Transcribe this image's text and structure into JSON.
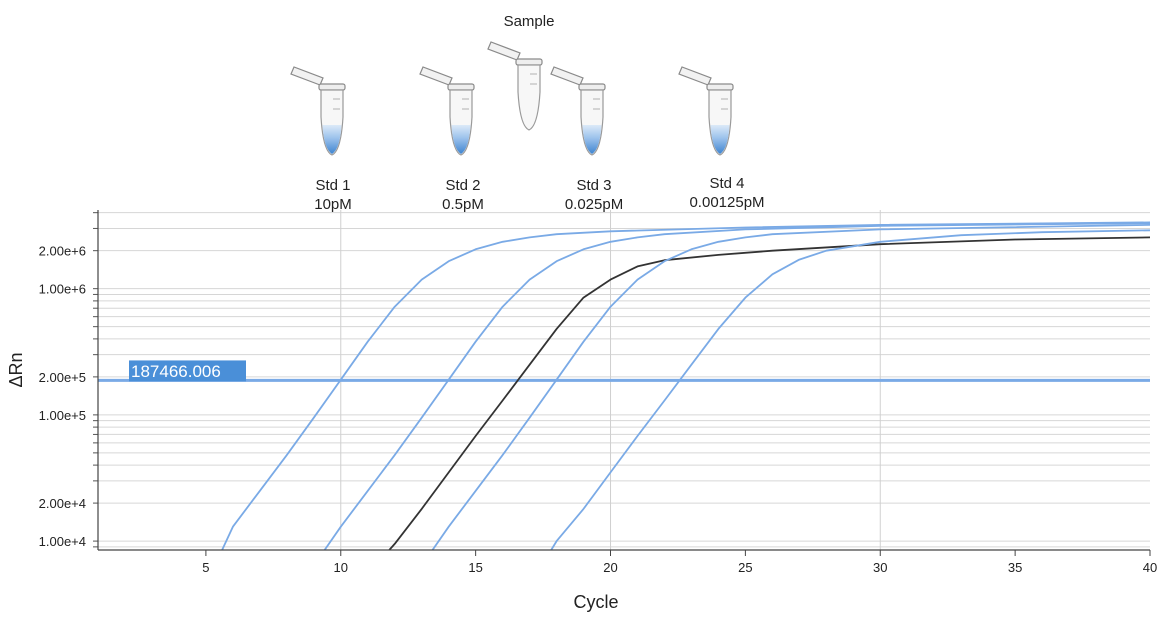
{
  "chart_data": {
    "type": "line",
    "xlabel": "Cycle",
    "ylabel": "ΔRn",
    "y_scale": "log",
    "xlim": [
      1,
      40
    ],
    "ylim": [
      8500,
      4200000
    ],
    "x_ticks": [
      5,
      10,
      15,
      20,
      25,
      30,
      35,
      40
    ],
    "x_tick_labels": [
      "5",
      "10",
      "15",
      "20",
      "25",
      "30",
      "35",
      "40"
    ],
    "y_ticks": [
      10000,
      20000,
      100000,
      200000,
      1000000,
      2000000
    ],
    "y_tick_labels": [
      "1.00e+4",
      "2.00e+4",
      "1.00e+5",
      "2.00e+5",
      "1.00e+6",
      "2.00e+6"
    ],
    "grid": true,
    "threshold": {
      "value": 187466.006,
      "label": "187466.006",
      "color": "#7aaae6"
    },
    "series": [
      {
        "color": "#7aaae6",
        "points": [
          [
            5.6,
            8500
          ],
          [
            6,
            13000
          ],
          [
            7,
            25000
          ],
          [
            8,
            48000
          ],
          [
            9,
            95000
          ],
          [
            10,
            190000
          ],
          [
            11,
            380000
          ],
          [
            12,
            720000
          ],
          [
            13,
            1180000
          ],
          [
            14,
            1650000
          ],
          [
            15,
            2050000
          ],
          [
            16,
            2350000
          ],
          [
            17,
            2550000
          ],
          [
            18,
            2700000
          ],
          [
            20,
            2850000
          ],
          [
            25,
            3050000
          ],
          [
            30,
            3200000
          ],
          [
            40,
            3350000
          ]
        ]
      },
      {
        "color": "#7aaae6",
        "points": [
          [
            9.4,
            8500
          ],
          [
            10,
            13000
          ],
          [
            11,
            25000
          ],
          [
            12,
            48000
          ],
          [
            13,
            95000
          ],
          [
            14,
            190000
          ],
          [
            15,
            380000
          ],
          [
            16,
            720000
          ],
          [
            17,
            1180000
          ],
          [
            18,
            1650000
          ],
          [
            19,
            2050000
          ],
          [
            20,
            2350000
          ],
          [
            21,
            2550000
          ],
          [
            22,
            2700000
          ],
          [
            25,
            2950000
          ],
          [
            30,
            3150000
          ],
          [
            40,
            3300000
          ]
        ]
      },
      {
        "color": "#333333",
        "points": [
          [
            11.8,
            8500
          ],
          [
            12,
            9500
          ],
          [
            13,
            18000
          ],
          [
            14,
            35000
          ],
          [
            15,
            68000
          ],
          [
            16,
            130000
          ],
          [
            17,
            250000
          ],
          [
            18,
            480000
          ],
          [
            19,
            850000
          ],
          [
            20,
            1180000
          ],
          [
            21,
            1500000
          ],
          [
            22,
            1680000
          ],
          [
            24,
            1850000
          ],
          [
            26,
            2000000
          ],
          [
            30,
            2250000
          ],
          [
            35,
            2450000
          ],
          [
            40,
            2550000
          ]
        ]
      },
      {
        "color": "#7aaae6",
        "points": [
          [
            13.4,
            8500
          ],
          [
            14,
            13000
          ],
          [
            15,
            25000
          ],
          [
            16,
            48000
          ],
          [
            17,
            95000
          ],
          [
            18,
            190000
          ],
          [
            19,
            380000
          ],
          [
            20,
            720000
          ],
          [
            21,
            1180000
          ],
          [
            22,
            1650000
          ],
          [
            23,
            2050000
          ],
          [
            24,
            2350000
          ],
          [
            25,
            2550000
          ],
          [
            26,
            2700000
          ],
          [
            30,
            2950000
          ],
          [
            40,
            3200000
          ]
        ]
      },
      {
        "color": "#7aaae6",
        "points": [
          [
            17.8,
            8500
          ],
          [
            18,
            10000
          ],
          [
            19,
            18000
          ],
          [
            20,
            35000
          ],
          [
            21,
            68000
          ],
          [
            22,
            130000
          ],
          [
            23,
            250000
          ],
          [
            24,
            480000
          ],
          [
            25,
            850000
          ],
          [
            26,
            1300000
          ],
          [
            27,
            1700000
          ],
          [
            28,
            2000000
          ],
          [
            30,
            2350000
          ],
          [
            33,
            2650000
          ],
          [
            36,
            2800000
          ],
          [
            40,
            2900000
          ]
        ]
      }
    ]
  },
  "tubes": [
    {
      "name": "std1",
      "label": "Std 1",
      "conc": "10pM",
      "filled": true
    },
    {
      "name": "std2",
      "label": "Std 2",
      "conc": "0.5pM",
      "filled": true
    },
    {
      "name": "sample",
      "label": "Sample",
      "conc": "",
      "filled": false
    },
    {
      "name": "std3",
      "label": "Std 3",
      "conc": "0.025pM",
      "filled": true
    },
    {
      "name": "std4",
      "label": "Std 4",
      "conc": "0.00125pM",
      "filled": true
    }
  ],
  "colors": {
    "curve_blue": "#7aaae6",
    "sample_curve": "#333333",
    "liquid": "#4a8fd8",
    "threshold_box": "#4a8fd8"
  }
}
